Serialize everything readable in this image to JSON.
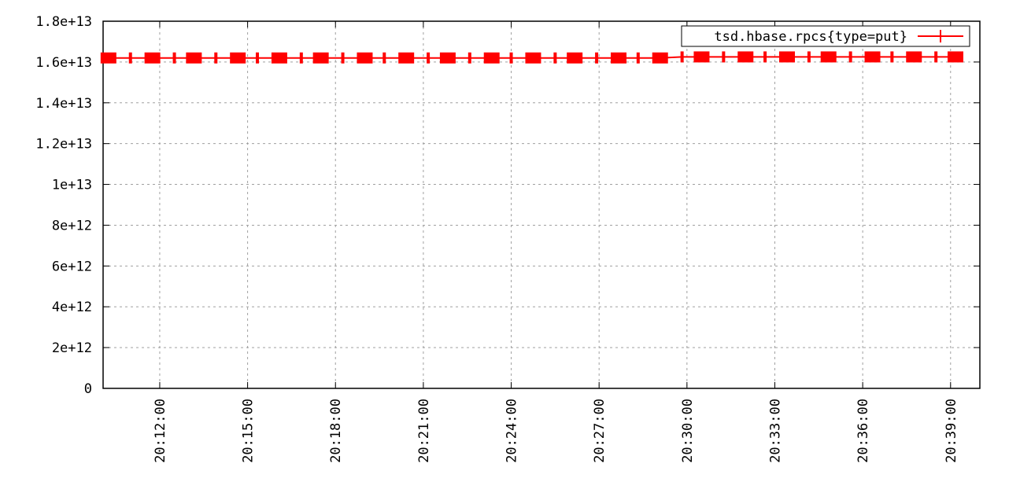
{
  "chart_data": {
    "type": "line",
    "title": "",
    "xlabel": "",
    "ylabel": "",
    "ylim": [
      0,
      18000000000000
    ],
    "y_ticks": [
      {
        "value": 0,
        "label": "0"
      },
      {
        "value": 2000000000000,
        "label": "2e+12"
      },
      {
        "value": 4000000000000,
        "label": "4e+12"
      },
      {
        "value": 6000000000000,
        "label": "6e+12"
      },
      {
        "value": 8000000000000,
        "label": "8e+12"
      },
      {
        "value": 10000000000000,
        "label": "1e+13"
      },
      {
        "value": 12000000000000,
        "label": "1.2e+13"
      },
      {
        "value": 14000000000000,
        "label": "1.4e+13"
      },
      {
        "value": 16000000000000,
        "label": "1.6e+13"
      },
      {
        "value": 18000000000000,
        "label": "1.8e+13"
      }
    ],
    "xlim": [
      "20:10:04",
      "20:40:00"
    ],
    "x_ticks": [
      "20:12:00",
      "20:15:00",
      "20:18:00",
      "20:21:00",
      "20:24:00",
      "20:27:00",
      "20:30:00",
      "20:33:00",
      "20:36:00",
      "20:39:00"
    ],
    "grid": true,
    "legend_position": "top-right",
    "series": [
      {
        "name": "tsd.hbase.rpcs{type=put}",
        "color": "#ff0000",
        "x": [
          "20:10:15",
          "20:11:00",
          "20:11:45",
          "20:12:30",
          "20:13:10",
          "20:13:55",
          "20:14:40",
          "20:15:20",
          "20:16:05",
          "20:16:50",
          "20:17:30",
          "20:18:15",
          "20:19:00",
          "20:19:40",
          "20:20:25",
          "20:21:10",
          "20:21:50",
          "20:22:35",
          "20:23:20",
          "20:24:00",
          "20:24:45",
          "20:25:30",
          "20:26:10",
          "20:26:55",
          "20:27:40",
          "20:28:20",
          "20:29:05",
          "20:29:50",
          "20:30:30",
          "20:31:15",
          "20:32:00",
          "20:32:40",
          "20:33:25",
          "20:34:10",
          "20:34:50",
          "20:35:35",
          "20:36:20",
          "20:37:00",
          "20:37:45",
          "20:38:30",
          "20:39:10"
        ],
        "values": [
          16200000000000,
          16200000000000,
          16200000000000,
          16200000000000,
          16200000000000,
          16200000000000,
          16200000000000,
          16200000000000,
          16200000000000,
          16200000000000,
          16200000000000,
          16200000000000,
          16200000000000,
          16200000000000,
          16200000000000,
          16200000000000,
          16200000000000,
          16200000000000,
          16200000000000,
          16200000000000,
          16200000000000,
          16200000000000,
          16200000000000,
          16200000000000,
          16200000000000,
          16200000000000,
          16200000000000,
          16250000000000,
          16250000000000,
          16250000000000,
          16250000000000,
          16250000000000,
          16250000000000,
          16250000000000,
          16250000000000,
          16250000000000,
          16250000000000,
          16250000000000,
          16250000000000,
          16250000000000,
          16250000000000
        ]
      }
    ]
  }
}
